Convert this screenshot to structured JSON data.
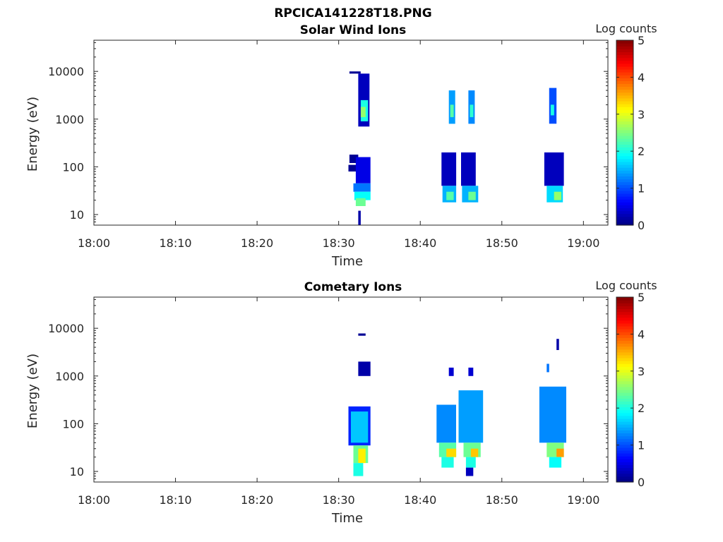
{
  "figure_title": "RPCICA141228T18.PNG",
  "chart_data": [
    {
      "type": "heatmap",
      "title": "Solar Wind Ions",
      "xlabel": "Time",
      "ylabel": "Energy (eV)",
      "xlim": [
        "18:00",
        "19:03"
      ],
      "ylim": [
        6,
        45000
      ],
      "y_scale": "log",
      "x_ticks": [
        "18:00",
        "18:10",
        "18:20",
        "18:30",
        "18:40",
        "18:50",
        "19:00"
      ],
      "y_ticks": [
        "10",
        "100",
        "1000",
        "10000"
      ],
      "colorbar": {
        "label": "Log counts",
        "min": 0,
        "max": 5,
        "ticks": [
          "0",
          "1",
          "2",
          "3",
          "4",
          "5"
        ]
      },
      "blocks": [
        {
          "t0": 18.54,
          "t1": 18.563,
          "e0": 700,
          "e1": 9000,
          "c": 0.3
        },
        {
          "t0": 18.545,
          "t1": 18.56,
          "e0": 900,
          "e1": 2500,
          "c": 2.0
        },
        {
          "t0": 18.545,
          "t1": 18.555,
          "e0": 1100,
          "e1": 1800,
          "c": 2.6
        },
        {
          "t0": 18.522,
          "t1": 18.545,
          "e0": 9000,
          "e1": 10000,
          "c": 0.1
        },
        {
          "t0": 18.522,
          "t1": 18.54,
          "e0": 120,
          "e1": 180,
          "c": 0.1
        },
        {
          "t0": 18.52,
          "t1": 18.548,
          "e0": 80,
          "e1": 110,
          "c": 0.1
        },
        {
          "t0": 18.535,
          "t1": 18.565,
          "e0": 45,
          "e1": 160,
          "c": 0.5
        },
        {
          "t0": 18.53,
          "t1": 18.565,
          "e0": 30,
          "e1": 45,
          "c": 1.2
        },
        {
          "t0": 18.532,
          "t1": 18.565,
          "e0": 20,
          "e1": 30,
          "c": 1.9
        },
        {
          "t0": 18.535,
          "t1": 18.555,
          "e0": 15,
          "e1": 22,
          "c": 2.4
        },
        {
          "t0": 18.54,
          "t1": 18.545,
          "e0": 6,
          "e1": 12,
          "c": 0.2
        },
        {
          "t0": 18.725,
          "t1": 18.738,
          "e0": 800,
          "e1": 4000,
          "c": 1.4
        },
        {
          "t0": 18.728,
          "t1": 18.735,
          "e0": 1100,
          "e1": 2000,
          "c": 2.3
        },
        {
          "t0": 18.765,
          "t1": 18.778,
          "e0": 800,
          "e1": 4000,
          "c": 1.3
        },
        {
          "t0": 18.768,
          "t1": 18.775,
          "e0": 1100,
          "e1": 2000,
          "c": 2.1
        },
        {
          "t0": 18.93,
          "t1": 18.945,
          "e0": 800,
          "e1": 4500,
          "c": 1.0
        },
        {
          "t0": 18.933,
          "t1": 18.94,
          "e0": 1200,
          "e1": 2000,
          "c": 2.0
        },
        {
          "t0": 18.71,
          "t1": 18.74,
          "e0": 40,
          "e1": 200,
          "c": 0.3
        },
        {
          "t0": 18.712,
          "t1": 18.74,
          "e0": 18,
          "e1": 40,
          "c": 1.5
        },
        {
          "t0": 18.72,
          "t1": 18.735,
          "e0": 20,
          "e1": 30,
          "c": 2.3
        },
        {
          "t0": 18.75,
          "t1": 18.78,
          "e0": 40,
          "e1": 200,
          "c": 0.3
        },
        {
          "t0": 18.752,
          "t1": 18.785,
          "e0": 18,
          "e1": 40,
          "c": 1.5
        },
        {
          "t0": 18.765,
          "t1": 18.78,
          "e0": 20,
          "e1": 30,
          "c": 2.4
        },
        {
          "t0": 18.92,
          "t1": 18.96,
          "e0": 40,
          "e1": 200,
          "c": 0.3
        },
        {
          "t0": 18.925,
          "t1": 18.958,
          "e0": 18,
          "e1": 40,
          "c": 1.7
        },
        {
          "t0": 18.94,
          "t1": 18.955,
          "e0": 20,
          "e1": 30,
          "c": 2.6
        }
      ]
    },
    {
      "type": "heatmap",
      "title": "Cometary Ions",
      "xlabel": "Time",
      "ylabel": "Energy (eV)",
      "xlim": [
        "18:00",
        "19:03"
      ],
      "ylim": [
        6,
        45000
      ],
      "y_scale": "log",
      "x_ticks": [
        "18:00",
        "18:10",
        "18:20",
        "18:30",
        "18:40",
        "18:50",
        "19:00"
      ],
      "y_ticks": [
        "10",
        "100",
        "1000",
        "10000"
      ],
      "colorbar": {
        "label": "Log counts",
        "min": 0,
        "max": 5,
        "ticks": [
          "0",
          "1",
          "2",
          "3",
          "4",
          "5"
        ]
      },
      "blocks": [
        {
          "t0": 18.54,
          "t1": 18.555,
          "e0": 7000,
          "e1": 7800,
          "c": 0.1
        },
        {
          "t0": 18.54,
          "t1": 18.565,
          "e0": 1000,
          "e1": 2000,
          "c": 0.2
        },
        {
          "t0": 18.52,
          "t1": 18.565,
          "e0": 35,
          "e1": 230,
          "c": 0.8
        },
        {
          "t0": 18.525,
          "t1": 18.56,
          "e0": 40,
          "e1": 180,
          "c": 1.6
        },
        {
          "t0": 18.53,
          "t1": 18.56,
          "e0": 15,
          "e1": 35,
          "c": 2.4
        },
        {
          "t0": 18.54,
          "t1": 18.555,
          "e0": 15,
          "e1": 30,
          "c": 3.2
        },
        {
          "t0": 18.53,
          "t1": 18.55,
          "e0": 8,
          "e1": 15,
          "c": 2.0
        },
        {
          "t0": 18.7,
          "t1": 18.74,
          "e0": 40,
          "e1": 250,
          "c": 1.3
        },
        {
          "t0": 18.705,
          "t1": 18.74,
          "e0": 20,
          "e1": 40,
          "c": 2.3
        },
        {
          "t0": 18.72,
          "t1": 18.74,
          "e0": 20,
          "e1": 30,
          "c": 3.3
        },
        {
          "t0": 18.71,
          "t1": 18.735,
          "e0": 12,
          "e1": 20,
          "c": 2.0
        },
        {
          "t0": 18.745,
          "t1": 18.795,
          "e0": 40,
          "e1": 500,
          "c": 1.4
        },
        {
          "t0": 18.755,
          "t1": 18.79,
          "e0": 20,
          "e1": 40,
          "c": 2.4
        },
        {
          "t0": 18.77,
          "t1": 18.785,
          "e0": 20,
          "e1": 30,
          "c": 3.4
        },
        {
          "t0": 18.76,
          "t1": 18.78,
          "e0": 12,
          "e1": 20,
          "c": 2.0
        },
        {
          "t0": 18.76,
          "t1": 18.775,
          "e0": 8,
          "e1": 12,
          "c": 0.3
        },
        {
          "t0": 18.725,
          "t1": 18.735,
          "e0": 1000,
          "e1": 1500,
          "c": 0.4
        },
        {
          "t0": 18.765,
          "t1": 18.775,
          "e0": 1000,
          "e1": 1500,
          "c": 0.4
        },
        {
          "t0": 18.91,
          "t1": 18.965,
          "e0": 40,
          "e1": 600,
          "c": 1.3
        },
        {
          "t0": 18.925,
          "t1": 18.96,
          "e0": 20,
          "e1": 40,
          "c": 2.5
        },
        {
          "t0": 18.945,
          "t1": 18.96,
          "e0": 20,
          "e1": 30,
          "c": 3.6
        },
        {
          "t0": 18.93,
          "t1": 18.955,
          "e0": 12,
          "e1": 20,
          "c": 1.9
        },
        {
          "t0": 18.925,
          "t1": 18.93,
          "e0": 1200,
          "e1": 1800,
          "c": 1.2
        },
        {
          "t0": 18.945,
          "t1": 18.95,
          "e0": 3500,
          "e1": 6000,
          "c": 0.2
        }
      ]
    }
  ],
  "colors": {
    "background": "#ffffff",
    "plot_background": "#ffffff",
    "axis": "#262626"
  }
}
